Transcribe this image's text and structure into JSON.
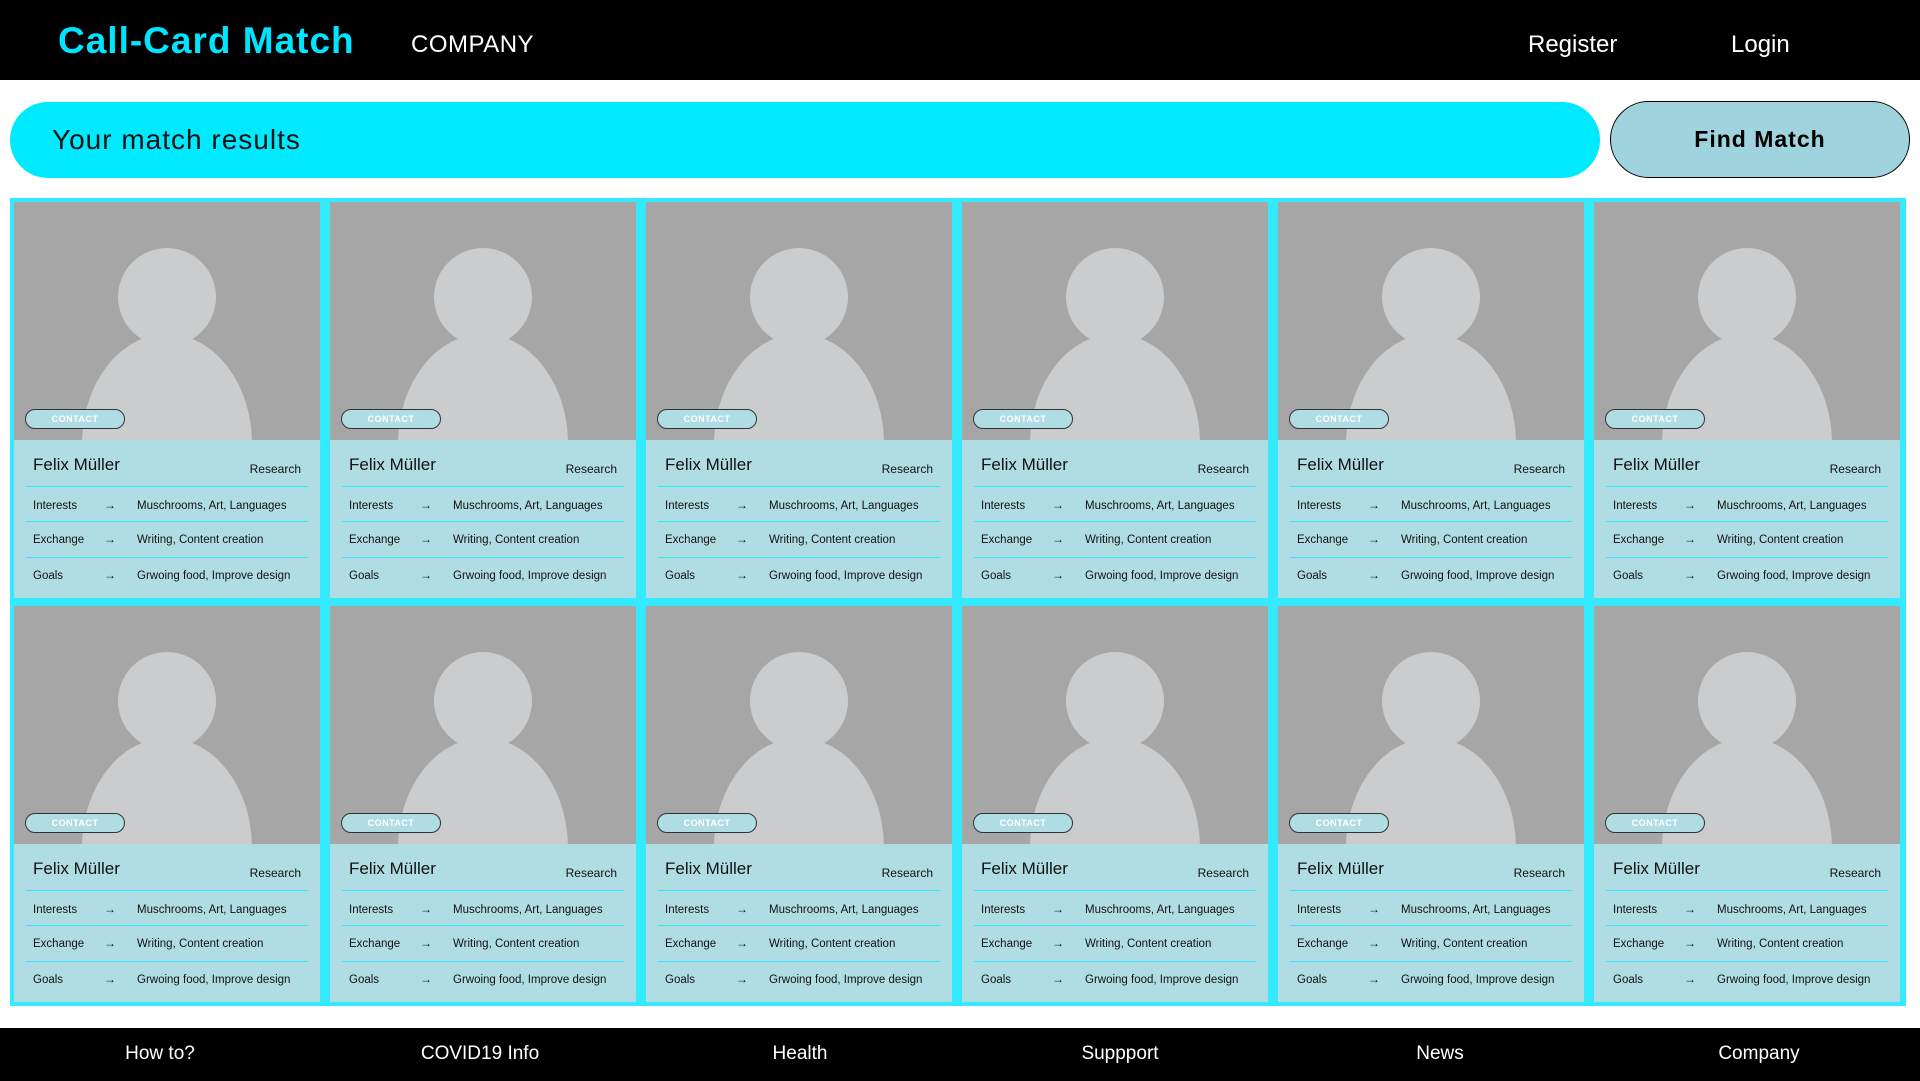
{
  "header": {
    "brand": "Call-Card Match",
    "company_link": "COMPANY",
    "register_link": "Register",
    "login_link": "Login"
  },
  "search": {
    "results_text": "Your match results",
    "find_button": "Find Match"
  },
  "labels": {
    "contact": "CONTACT",
    "interests": "Interests",
    "exchange": "Exchange",
    "goals": "Goals",
    "arrow": "→"
  },
  "cards": [
    {
      "name": "Felix Müller",
      "role": "Research",
      "interests": "Muschrooms, Art, Languages",
      "exchange": "Writing, Content creation",
      "goals": "Grwoing food, Improve design"
    },
    {
      "name": "Felix Müller",
      "role": "Research",
      "interests": "Muschrooms, Art, Languages",
      "exchange": "Writing, Content creation",
      "goals": "Grwoing food, Improve design"
    },
    {
      "name": "Felix Müller",
      "role": "Research",
      "interests": "Muschrooms, Art, Languages",
      "exchange": "Writing, Content creation",
      "goals": "Grwoing food, Improve design"
    },
    {
      "name": "Felix Müller",
      "role": "Research",
      "interests": "Muschrooms, Art, Languages",
      "exchange": "Writing, Content creation",
      "goals": "Grwoing food, Improve design"
    },
    {
      "name": "Felix Müller",
      "role": "Research",
      "interests": "Muschrooms, Art, Languages",
      "exchange": "Writing, Content creation",
      "goals": "Grwoing food, Improve design"
    },
    {
      "name": "Felix Müller",
      "role": "Research",
      "interests": "Muschrooms, Art, Languages",
      "exchange": "Writing, Content creation",
      "goals": "Grwoing food, Improve design"
    },
    {
      "name": "Felix Müller",
      "role": "Research",
      "interests": "Muschrooms, Art, Languages",
      "exchange": "Writing, Content creation",
      "goals": "Grwoing food, Improve design"
    },
    {
      "name": "Felix Müller",
      "role": "Research",
      "interests": "Muschrooms, Art, Languages",
      "exchange": "Writing, Content creation",
      "goals": "Grwoing food, Improve design"
    },
    {
      "name": "Felix Müller",
      "role": "Research",
      "interests": "Muschrooms, Art, Languages",
      "exchange": "Writing, Content creation",
      "goals": "Grwoing food, Improve design"
    },
    {
      "name": "Felix Müller",
      "role": "Research",
      "interests": "Muschrooms, Art, Languages",
      "exchange": "Writing, Content creation",
      "goals": "Grwoing food, Improve design"
    },
    {
      "name": "Felix Müller",
      "role": "Research",
      "interests": "Muschrooms, Art, Languages",
      "exchange": "Writing, Content creation",
      "goals": "Grwoing food, Improve design"
    },
    {
      "name": "Felix Müller",
      "role": "Research",
      "interests": "Muschrooms, Art, Languages",
      "exchange": "Writing, Content creation",
      "goals": "Grwoing food, Improve design"
    }
  ],
  "footer": {
    "links": [
      "How to?",
      "COVID19 Info",
      "Health",
      "Suppport",
      "News",
      "Company"
    ]
  },
  "colors": {
    "accent": "#00eaff",
    "card_bg": "#b0dde4",
    "photo_bg": "#a6a6a6",
    "bar_bg": "#000000"
  },
  "icons": {
    "avatar": "avatar-placeholder-icon"
  }
}
